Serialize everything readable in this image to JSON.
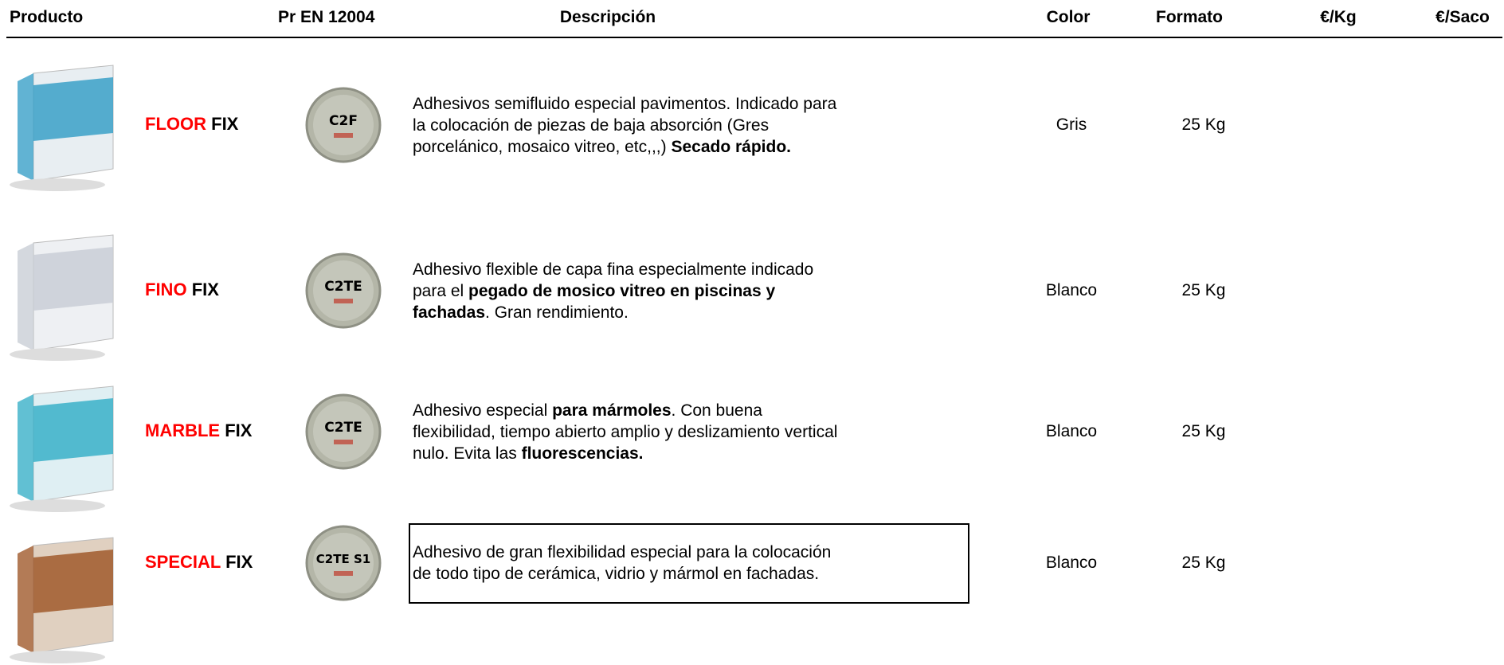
{
  "header": {
    "columns": [
      "Producto",
      "Pr EN 12004",
      "Descripción",
      "Color",
      "Formato",
      "€/Kg",
      "€/Saco"
    ]
  },
  "rows": [
    {
      "name_parts": [
        {
          "text": "FLOOR",
          "color": "#ff0000"
        },
        {
          "text": "FIX",
          "color": "#000000"
        }
      ],
      "norm_code": "C2F",
      "description": [
        [
          {
            "text": "Adhesivos semifluido especial pavimentos. Indicado para",
            "bold": false
          }
        ],
        [
          {
            "text": "la colocación de piezas de baja absorción (Gres",
            "bold": false
          }
        ],
        [
          {
            "text": "porcelánico, mosaico vitreo, etc,,,) ",
            "bold": false
          },
          {
            "text": "Secado rápido.",
            "bold": true
          }
        ]
      ],
      "color": "Gris",
      "format": "25 Kg"
    },
    {
      "name_parts": [
        {
          "text": "FINO",
          "color": "#ff0000"
        },
        {
          "text": "FIX",
          "color": "#000000"
        }
      ],
      "norm_code": "C2TE",
      "description": [
        [
          {
            "text": "Adhesivo flexible de capa fina especialmente indicado",
            "bold": false
          }
        ],
        [
          {
            "text": "para el ",
            "bold": false
          },
          {
            "text": "pegado de mosico vitreo en piscinas y",
            "bold": true
          }
        ],
        [
          {
            "text": "fachadas",
            "bold": true
          },
          {
            "text": ". Gran rendimiento.",
            "bold": false
          }
        ]
      ],
      "color": "Blanco",
      "format": "25 Kg"
    },
    {
      "name_parts": [
        {
          "text": "MARBLE",
          "color": "#ff0000"
        },
        {
          "text": "FIX",
          "color": "#000000"
        }
      ],
      "norm_code": "C2TE",
      "description": [
        [
          {
            "text": "Adhesivo especial ",
            "bold": false
          },
          {
            "text": "para mármoles",
            "bold": true
          },
          {
            "text": ". Con buena",
            "bold": false
          }
        ],
        [
          {
            "text": "flexibilidad, tiempo abierto amplio y deslizamiento vertical",
            "bold": false
          }
        ],
        [
          {
            "text": "nulo. Evita las ",
            "bold": false
          },
          {
            "text": "fluorescencias.",
            "bold": true
          }
        ]
      ],
      "color": "Blanco",
      "format": "25 Kg"
    },
    {
      "name_parts": [
        {
          "text": "SPECIAL",
          "color": "#ff0000"
        },
        {
          "text": "FIX",
          "color": "#000000"
        }
      ],
      "norm_code": "C2TE S1",
      "description": [
        [
          {
            "text": "Adhesivo de gran flexibilidad especial para la colocación",
            "bold": false
          }
        ],
        [
          {
            "text": "de todo tipo de cerámica, vidrio y mármol en fachadas.",
            "bold": false
          }
        ]
      ],
      "color": "Blanco",
      "format": "25 Kg"
    }
  ]
}
